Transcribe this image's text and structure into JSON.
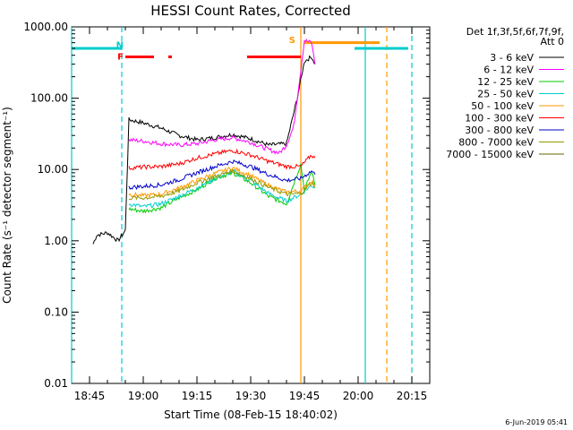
{
  "chart_data": {
    "type": "line",
    "title": "HESSI Count Rates, Corrected",
    "xlabel": "Start Time (08-Feb-15 18:40:02)",
    "ylabel": "Count Rate (s⁻¹ detector segment⁻¹)",
    "yscale": "log",
    "ylim": [
      0.01,
      1000
    ],
    "xlim": [
      "18:40",
      "20:20"
    ],
    "x_ticks": [
      "18:45",
      "19:00",
      "19:15",
      "19:30",
      "19:45",
      "20:00",
      "20:15"
    ],
    "y_ticks": [
      "0.01",
      "0.10",
      "1.00",
      "10.00",
      "100.00",
      "1000.00"
    ],
    "grid": false,
    "legend": {
      "position": "right",
      "header": [
        "Det 1f,3f,5f,6f,7f,9f,",
        "Att 0"
      ]
    },
    "series": [
      {
        "name": "3 - 6 keV",
        "color": "#000000",
        "x": [
          "18:46",
          "18:47",
          "18:50",
          "18:53",
          "18:55",
          "18:56",
          "19:00",
          "19:05",
          "19:10",
          "19:15",
          "19:20",
          "19:25",
          "19:30",
          "19:35",
          "19:40",
          "19:43",
          "19:45",
          "19:47",
          "19:48"
        ],
        "values": [
          0.9,
          1.2,
          1.3,
          1.0,
          1.4,
          50,
          45,
          38,
          30,
          26,
          28,
          31,
          27,
          22,
          23,
          100,
          330,
          380,
          300
        ]
      },
      {
        "name": "6 - 12 keV",
        "color": "#ff00ff",
        "x": [
          "18:56",
          "19:00",
          "19:05",
          "19:10",
          "19:15",
          "19:20",
          "19:25",
          "19:30",
          "19:35",
          "19:38",
          "19:40",
          "19:42",
          "19:44",
          "19:45",
          "19:47",
          "19:48"
        ],
        "values": [
          26,
          25,
          23,
          22,
          23,
          26,
          28,
          24,
          19,
          17,
          22,
          40,
          250,
          650,
          600,
          300
        ]
      },
      {
        "name": "12 - 25 keV",
        "color": "#00cc00",
        "x": [
          "18:56",
          "19:00",
          "19:05",
          "19:10",
          "19:15",
          "19:20",
          "19:25",
          "19:30",
          "19:35",
          "19:40",
          "19:44",
          "19:45",
          "19:47",
          "19:48"
        ],
        "values": [
          2.8,
          2.6,
          2.9,
          4.0,
          5.2,
          7.5,
          9.0,
          6.5,
          4.2,
          3.3,
          12,
          5.0,
          9.5,
          6.0
        ]
      },
      {
        "name": "25 - 50 keV",
        "color": "#00cccc",
        "x": [
          "18:56",
          "19:00",
          "19:05",
          "19:10",
          "19:15",
          "19:20",
          "19:25",
          "19:30",
          "19:35",
          "19:40",
          "19:44",
          "19:47",
          "19:48"
        ],
        "values": [
          3.3,
          3.0,
          3.3,
          4.2,
          5.5,
          7.5,
          9.5,
          7.0,
          4.6,
          3.6,
          4.5,
          6.0,
          5.5
        ]
      },
      {
        "name": "50 - 100 keV",
        "color": "#ff9900",
        "x": [
          "18:56",
          "19:00",
          "19:05",
          "19:10",
          "19:15",
          "19:20",
          "19:25",
          "19:30",
          "19:35",
          "19:40",
          "19:44",
          "19:47",
          "19:48"
        ],
        "values": [
          4.5,
          4.3,
          4.5,
          5.5,
          7.0,
          8.8,
          10.5,
          8.2,
          6.0,
          4.8,
          5.0,
          7.0,
          6.0
        ]
      },
      {
        "name": "100 - 300 keV",
        "color": "#ff0000",
        "x": [
          "18:56",
          "19:00",
          "19:05",
          "19:10",
          "19:15",
          "19:20",
          "19:25",
          "19:30",
          "19:35",
          "19:40",
          "19:44",
          "19:47",
          "19:48"
        ],
        "values": [
          10.5,
          10.8,
          11.0,
          12.0,
          14.5,
          16.5,
          18.5,
          16.0,
          13.0,
          11.0,
          11.0,
          16.0,
          14.5
        ]
      },
      {
        "name": "300 - 800 keV",
        "color": "#0000cc",
        "x": [
          "18:56",
          "19:00",
          "19:05",
          "19:10",
          "19:15",
          "19:20",
          "19:25",
          "19:30",
          "19:35",
          "19:40",
          "19:44",
          "19:47",
          "19:48"
        ],
        "values": [
          5.6,
          5.8,
          6.1,
          7.2,
          9.0,
          11.0,
          13.0,
          11.0,
          8.5,
          7.0,
          7.5,
          9.5,
          8.5
        ]
      },
      {
        "name": "800 - 7000 keV",
        "color": "#999900",
        "x": [
          "18:56",
          "19:00",
          "19:05",
          "19:10",
          "19:15",
          "19:20",
          "19:25",
          "19:30",
          "19:35",
          "19:40",
          "19:44",
          "19:47",
          "19:48"
        ],
        "values": [
          4.0,
          4.0,
          4.2,
          5.0,
          6.5,
          8.0,
          9.5,
          7.5,
          5.6,
          4.5,
          4.6,
          6.5,
          5.8
        ]
      },
      {
        "name": "7000 - 15000 keV",
        "color": "#666600",
        "x": [],
        "values": []
      }
    ],
    "markers": {
      "letters": [
        {
          "text": "N",
          "x": "18:55",
          "y": 550,
          "color": "#00cccc"
        },
        {
          "text": "F",
          "x": "18:55",
          "y": 380,
          "color": "#ff0000"
        },
        {
          "text": "S",
          "x": "19:43",
          "y": 650,
          "color": "#ff9900"
        }
      ],
      "bars": [
        {
          "x1": "18:40",
          "x2": "18:54",
          "y": 500,
          "color": "#00cccc"
        },
        {
          "x1": "19:59",
          "x2": "20:14",
          "y": 500,
          "color": "#00cccc"
        },
        {
          "x1": "18:55",
          "x2": "19:03",
          "y": 380,
          "color": "#ff0000"
        },
        {
          "x1": "19:07",
          "x2": "19:08",
          "y": 380,
          "color": "#ff0000"
        },
        {
          "x1": "19:29",
          "x2": "19:44",
          "y": 380,
          "color": "#ff0000"
        },
        {
          "x1": "19:45",
          "x2": "20:06",
          "y": 600,
          "color": "#ff9900"
        }
      ],
      "vlines": [
        {
          "x": "18:40",
          "color": "#00cccc",
          "dashed": false
        },
        {
          "x": "18:54",
          "color": "#00cccc",
          "dashed": true
        },
        {
          "x": "19:44",
          "color": "#ff9900",
          "dashed": false
        },
        {
          "x": "20:02",
          "color": "#00cccc",
          "dashed": false
        },
        {
          "x": "20:08",
          "color": "#ff9900",
          "dashed": true
        },
        {
          "x": "20:15",
          "color": "#00cccc",
          "dashed": true
        }
      ]
    }
  },
  "footer": {
    "timestamp": "6-Jun-2019 05:41"
  }
}
